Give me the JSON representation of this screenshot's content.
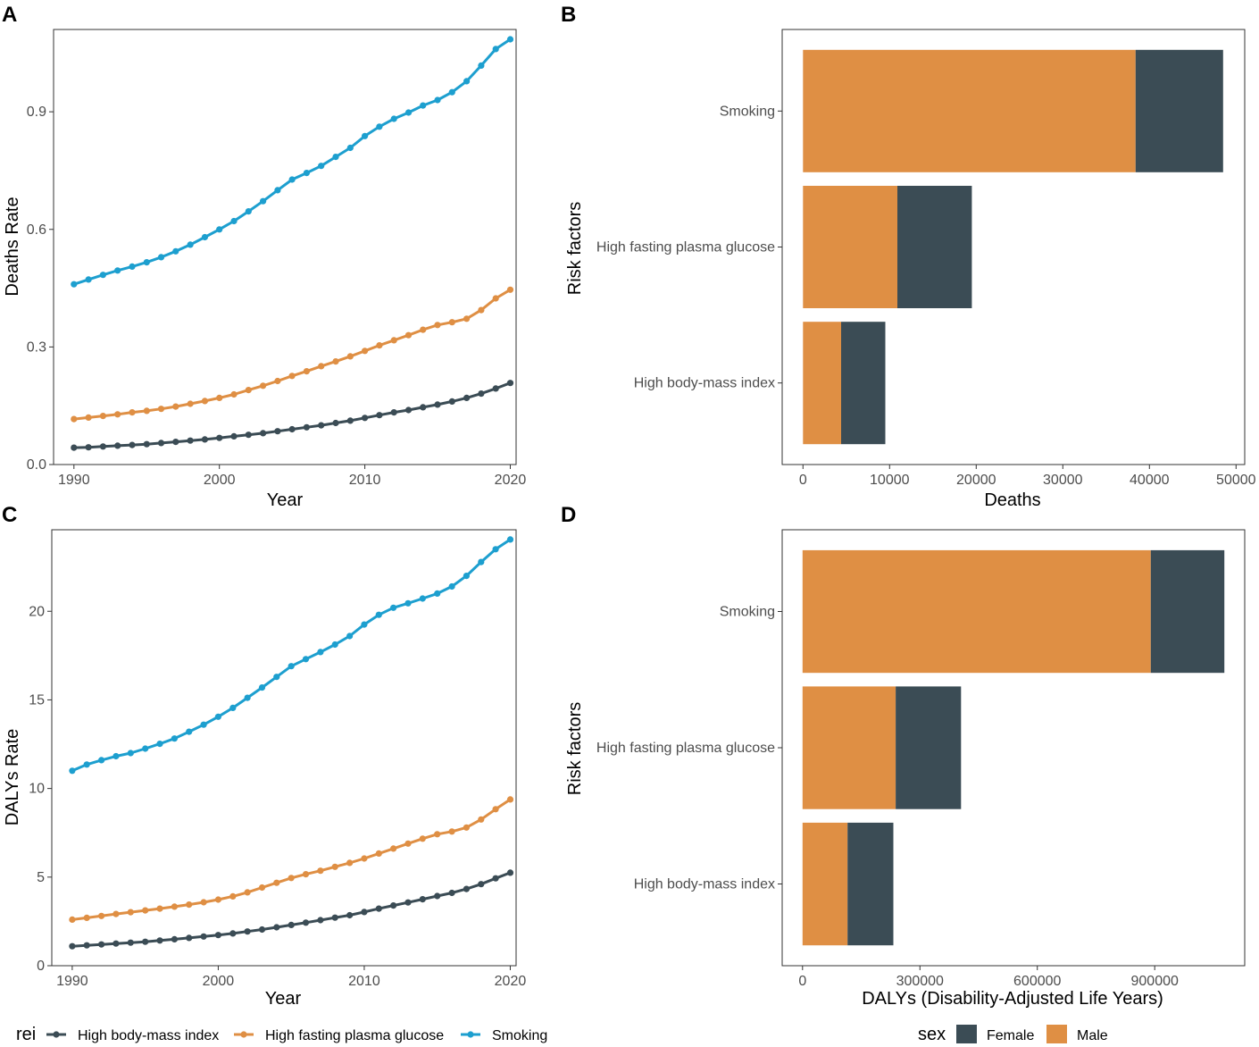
{
  "colors": {
    "High body-mass index": "#3b4c55",
    "High fasting plasma glucose": "#df8f44",
    "Smoking": "#1d9fcf",
    "Female": "#3b4c55",
    "Male": "#df8f44"
  },
  "legends": {
    "line": {
      "title": "rei",
      "items": [
        "High body-mass index",
        "High fasting plasma glucose",
        "Smoking"
      ]
    },
    "bar": {
      "title": "sex",
      "items": [
        "Female",
        "Male"
      ]
    }
  },
  "chart_data": [
    {
      "panel": "A",
      "type": "line",
      "xlabel": "Year",
      "ylabel": "Deaths Rate",
      "xlim": [
        1988.6,
        2020.4
      ],
      "ylim": [
        0,
        1.11
      ],
      "xticks": [
        1990,
        2000,
        2010,
        2020
      ],
      "yticks": [
        0,
        0.3,
        0.6,
        0.9
      ],
      "ytick_labels": [
        "0.0",
        "0.3",
        "0.6",
        "0.9"
      ],
      "x_start": 1990,
      "series": [
        {
          "name": "High body-mass index",
          "values": [
            0.043,
            0.044,
            0.046,
            0.048,
            0.05,
            0.052,
            0.055,
            0.058,
            0.061,
            0.064,
            0.068,
            0.072,
            0.076,
            0.08,
            0.085,
            0.09,
            0.095,
            0.1,
            0.106,
            0.112,
            0.119,
            0.126,
            0.133,
            0.139,
            0.146,
            0.153,
            0.161,
            0.17,
            0.181,
            0.194,
            0.208
          ]
        },
        {
          "name": "High fasting plasma glucose",
          "values": [
            0.116,
            0.12,
            0.124,
            0.128,
            0.133,
            0.137,
            0.142,
            0.148,
            0.155,
            0.162,
            0.17,
            0.179,
            0.19,
            0.201,
            0.213,
            0.226,
            0.238,
            0.251,
            0.263,
            0.276,
            0.29,
            0.304,
            0.317,
            0.33,
            0.344,
            0.356,
            0.363,
            0.372,
            0.394,
            0.424,
            0.446
          ]
        },
        {
          "name": "Smoking",
          "values": [
            0.46,
            0.472,
            0.484,
            0.495,
            0.505,
            0.516,
            0.529,
            0.544,
            0.561,
            0.58,
            0.6,
            0.621,
            0.646,
            0.672,
            0.7,
            0.727,
            0.744,
            0.762,
            0.785,
            0.808,
            0.838,
            0.862,
            0.882,
            0.898,
            0.916,
            0.93,
            0.95,
            0.978,
            1.018,
            1.06,
            1.085
          ]
        }
      ]
    },
    {
      "panel": "B",
      "type": "bar",
      "orientation": "horizontal",
      "stacked": true,
      "xlabel": "Deaths",
      "ylabel": "Risk factors",
      "xlim": [
        -2400,
        51000
      ],
      "xticks": [
        0,
        10000,
        20000,
        30000,
        40000,
        50000
      ],
      "categories": [
        "Smoking",
        "High fasting plasma glucose",
        "High body-mass index"
      ],
      "series": [
        {
          "name": "Male",
          "values": [
            38400,
            10900,
            4400
          ]
        },
        {
          "name": "Female",
          "values": [
            10100,
            8600,
            5100
          ]
        }
      ]
    },
    {
      "panel": "C",
      "type": "line",
      "xlabel": "Year",
      "ylabel": "DALYs Rate",
      "xlim": [
        1988.6,
        2020.4
      ],
      "ylim": [
        0,
        24.6
      ],
      "xticks": [
        1990,
        2000,
        2010,
        2020
      ],
      "yticks": [
        0,
        5,
        10,
        15,
        20
      ],
      "ytick_labels": [
        "0",
        "5",
        "10",
        "15",
        "20"
      ],
      "x_start": 1990,
      "series": [
        {
          "name": "High body-mass index",
          "values": [
            1.1,
            1.15,
            1.2,
            1.25,
            1.3,
            1.35,
            1.42,
            1.49,
            1.57,
            1.65,
            1.73,
            1.82,
            1.93,
            2.04,
            2.17,
            2.3,
            2.43,
            2.57,
            2.71,
            2.85,
            3.03,
            3.22,
            3.4,
            3.57,
            3.75,
            3.93,
            4.11,
            4.33,
            4.6,
            4.93,
            5.25
          ]
        },
        {
          "name": "High fasting plasma glucose",
          "values": [
            2.6,
            2.7,
            2.81,
            2.92,
            3.02,
            3.12,
            3.22,
            3.33,
            3.45,
            3.58,
            3.73,
            3.91,
            4.14,
            4.41,
            4.68,
            4.95,
            5.16,
            5.36,
            5.58,
            5.8,
            6.05,
            6.33,
            6.61,
            6.89,
            7.17,
            7.42,
            7.57,
            7.8,
            8.25,
            8.83,
            9.38
          ]
        },
        {
          "name": "Smoking",
          "values": [
            11.0,
            11.35,
            11.6,
            11.82,
            12.0,
            12.25,
            12.52,
            12.82,
            13.2,
            13.6,
            14.05,
            14.55,
            15.12,
            15.7,
            16.3,
            16.9,
            17.3,
            17.7,
            18.12,
            18.6,
            19.25,
            19.8,
            20.2,
            20.45,
            20.72,
            21.0,
            21.4,
            22.0,
            22.78,
            23.5,
            24.05
          ]
        }
      ]
    },
    {
      "panel": "D",
      "type": "bar",
      "orientation": "horizontal",
      "stacked": true,
      "xlabel": "DALYs (Disability-Adjusted Life Years)",
      "ylabel": "Risk factors",
      "xlim": [
        -52000,
        1130000
      ],
      "xticks": [
        0,
        300000,
        600000,
        900000
      ],
      "categories": [
        "Smoking",
        "High fasting plasma glucose",
        "High body-mass index"
      ],
      "series": [
        {
          "name": "Male",
          "values": [
            890000,
            238000,
            115000
          ]
        },
        {
          "name": "Female",
          "values": [
            188000,
            167000,
            117000
          ]
        }
      ]
    }
  ]
}
